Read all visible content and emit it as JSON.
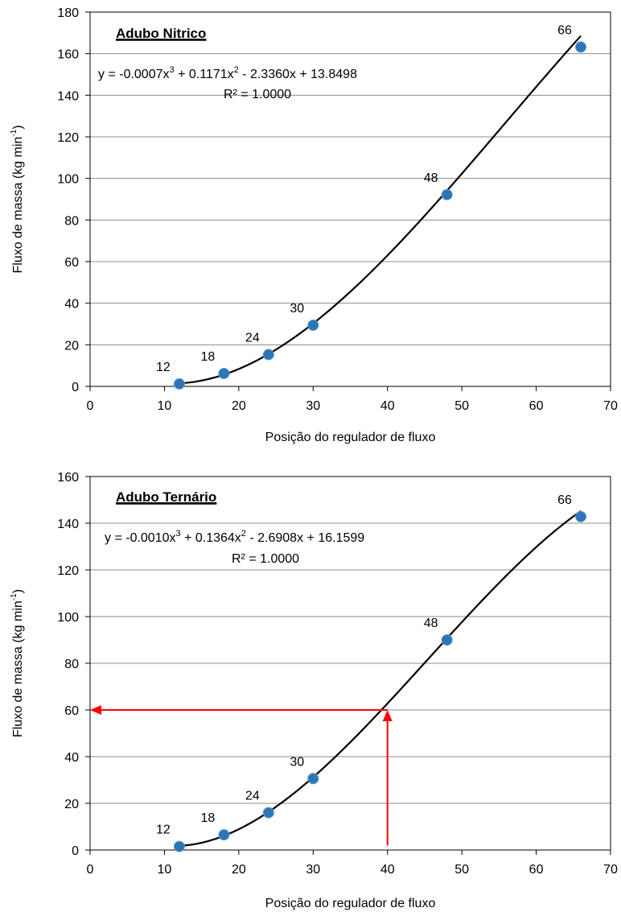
{
  "chart_data": [
    {
      "type": "scatter",
      "title": "Adubo Nitrico",
      "xlabel": "Posição do regulador de fluxo",
      "ylabel_main": "Fluxo de massa (kg min",
      "ylabel_sup": "-1",
      "ylabel_close": ")",
      "xlim": [
        0,
        70
      ],
      "ylim": [
        0,
        180
      ],
      "xticks": [
        0,
        10,
        20,
        30,
        40,
        50,
        60,
        70
      ],
      "yticks": [
        0,
        20,
        40,
        60,
        80,
        100,
        120,
        140,
        160,
        180
      ],
      "grid": "horizontal",
      "points": [
        {
          "x": 12,
          "y": 1.2,
          "label": "12"
        },
        {
          "x": 18,
          "y": 6.2,
          "label": "18"
        },
        {
          "x": 24,
          "y": 15.3,
          "label": "24"
        },
        {
          "x": 30,
          "y": 29.4,
          "label": "30"
        },
        {
          "x": 48,
          "y": 92.2,
          "label": "48"
        },
        {
          "x": 66,
          "y": 163.2,
          "label": "66"
        }
      ],
      "trendline": {
        "type": "polynomial",
        "order": 3,
        "coefficients": [
          -0.0007,
          0.1171,
          -2.336,
          13.8498
        ]
      },
      "equation_parts": [
        "y = -0.0007x",
        "3",
        " + 0.1171x",
        "2",
        " - 2.3360x + 13.8498"
      ],
      "r2": "R² = 1.0000",
      "point_color": "#2E75B6",
      "curve_color": "#000000"
    },
    {
      "type": "scatter",
      "title": "Adubo Ternário",
      "xlabel": "Posição do regulador de fluxo",
      "ylabel_main": "Fluxo de massa (kg min",
      "ylabel_sup": "-1",
      "ylabel_close": ")",
      "xlim": [
        0,
        70
      ],
      "ylim": [
        0,
        160
      ],
      "xticks": [
        0,
        10,
        20,
        30,
        40,
        50,
        60,
        70
      ],
      "yticks": [
        0,
        20,
        40,
        60,
        80,
        100,
        120,
        140,
        160
      ],
      "grid": "horizontal",
      "points": [
        {
          "x": 12,
          "y": 1.5,
          "label": "12"
        },
        {
          "x": 18,
          "y": 6.5,
          "label": "18"
        },
        {
          "x": 24,
          "y": 16.0,
          "label": "24"
        },
        {
          "x": 30,
          "y": 30.6,
          "label": "30"
        },
        {
          "x": 48,
          "y": 90.0,
          "label": "48"
        },
        {
          "x": 66,
          "y": 142.8,
          "label": "66"
        }
      ],
      "trendline": {
        "type": "polynomial",
        "order": 3,
        "coefficients": [
          -0.001,
          0.1364,
          -2.6908,
          16.1599
        ]
      },
      "equation_parts": [
        "y = -0.0010x",
        "3",
        " + 0.1364x",
        "2",
        " - 2.6908x + 16.1599"
      ],
      "r2": "R² = 1.0000",
      "point_color": "#2E75B6",
      "curve_color": "#000000",
      "arrows": [
        {
          "from": [
            40,
            2
          ],
          "to": [
            40,
            60
          ]
        },
        {
          "from": [
            40,
            60
          ],
          "to": [
            0,
            60
          ]
        }
      ],
      "arrow_color": "#FF0000"
    }
  ]
}
